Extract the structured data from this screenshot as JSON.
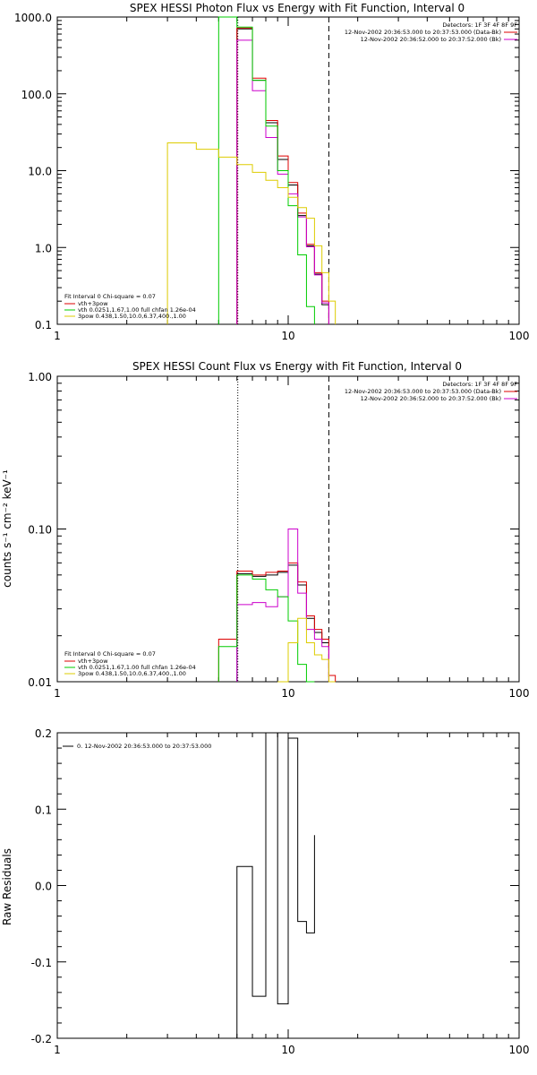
{
  "chart_data": [
    {
      "type": "line",
      "title": "SPEX HESSI Photon Flux vs Energy with Fit Function, Interval 0",
      "xlabel": "",
      "ylabel": "",
      "xscale": "log",
      "yscale": "log",
      "xlim": [
        1,
        100
      ],
      "ylim": [
        0.1,
        1000
      ],
      "x_ticks": [
        "1",
        "10",
        "100"
      ],
      "y_ticks": [
        "0.1",
        "1.0",
        "10.0",
        "100.0",
        "1000.0"
      ],
      "info_top_right": [
        "Detectors: 1F 3F 4F 8F 9F",
        "12-Nov-2002 20:36:53.000 to 20:37:53.000 (Data-Bk)",
        "12-Nov-2002 20:36:52.000 to 20:37:52.000 (Bk)"
      ],
      "legend_bottom_left": [
        "Fit Interval 0   Chi-square = 0.07",
        "vth+3pow",
        "vth 0.0251,1.67,1.00  full chfan 1.26e-04",
        "3pow 0.438,1.50,10.0,6.37,400.,1.00"
      ],
      "vlines": [
        {
          "x": 6.05,
          "style": "dotted"
        },
        {
          "x": 15.0,
          "style": "dashed"
        }
      ],
      "series": [
        {
          "color": "#000000",
          "edges": [
            6.0,
            7.0,
            8.0,
            9.0,
            10.0,
            11.0,
            12.0,
            13.0,
            14.0,
            15.0
          ],
          "values": [
            700,
            150,
            42,
            14,
            6.5,
            2.6,
            1.05,
            0.45,
            0.18
          ]
        },
        {
          "color": "#dd0000",
          "edges": [
            6.0,
            7.0,
            8.0,
            9.0,
            10.0,
            11.0,
            12.0,
            13.0,
            14.0,
            15.0
          ],
          "values": [
            720,
            160,
            45,
            15.5,
            7,
            2.8,
            1.1,
            0.47,
            0.2
          ]
        },
        {
          "color": "#cc00cc",
          "edges": [
            6.0,
            7.0,
            8.0,
            9.0,
            10.0,
            11.0,
            12.0,
            13.0,
            14.0,
            15.0
          ],
          "values": [
            500,
            110,
            27,
            9,
            5,
            2.5,
            1.02,
            0.44,
            0.19
          ]
        },
        {
          "color": "#00cc00",
          "edges": [
            5.0,
            6.0,
            7.0,
            8.0,
            9.0,
            10.0,
            11.0,
            12.0,
            13.0
          ],
          "values": [
            1000,
            740,
            150,
            38,
            10,
            3.5,
            0.8,
            0.17
          ]
        },
        {
          "color": "#ddcc00",
          "edges": [
            3.0,
            4.0,
            5.0,
            6.0,
            7.0,
            8.0,
            9.0,
            10.0,
            11.0,
            12.0,
            13.0,
            14.0,
            15.0,
            16.0
          ],
          "values": [
            23,
            19,
            15,
            12,
            9.5,
            7.5,
            6,
            4.5,
            3.3,
            2.4,
            1.05,
            0.47,
            0.2
          ]
        }
      ]
    },
    {
      "type": "line",
      "title": "SPEX HESSI Count Flux vs Energy with Fit Function, Interval 0",
      "xlabel": "",
      "ylabel": "counts s⁻¹ cm⁻² keV⁻¹",
      "xscale": "log",
      "yscale": "log",
      "xlim": [
        1,
        100
      ],
      "ylim": [
        0.01,
        1.0
      ],
      "x_ticks": [
        "1",
        "10",
        "100"
      ],
      "y_ticks": [
        "0.01",
        "0.10",
        "1.00"
      ],
      "info_top_right": [
        "Detectors: 1F 3F 4F 8F 9F",
        "12-Nov-2002 20:36:53.000 to 20:37:53.000 (Data-Bk)",
        "12-Nov-2002 20:36:52.000 to 20:37:52.000 (Bk)"
      ],
      "legend_bottom_left": [
        "Fit Interval 0   Chi-square = 0.07",
        "vth+3pow",
        "vth 0.0251,1.67,1.00  full chfan 1.26e-04",
        "3pow 0.438,1.50,10.0,6.37,400.,1.00"
      ],
      "vlines": [
        {
          "x": 6.05,
          "style": "dotted"
        },
        {
          "x": 15.0,
          "style": "dashed"
        }
      ],
      "series": [
        {
          "color": "#000000",
          "edges": [
            6.0,
            7.0,
            8.0,
            9.0,
            10.0,
            11.0,
            12.0,
            13.0,
            14.0,
            15.0
          ],
          "values": [
            0.051,
            0.049,
            0.05,
            0.052,
            0.058,
            0.043,
            0.026,
            0.021,
            0.018
          ]
        },
        {
          "color": "#dd0000",
          "edges": [
            5.0,
            6.0,
            7.0,
            8.0,
            9.0,
            10.0,
            11.0,
            12.0,
            13.0,
            14.0,
            15.0,
            16.0
          ],
          "values": [
            0.019,
            0.053,
            0.05,
            0.052,
            0.053,
            0.06,
            0.045,
            0.027,
            0.022,
            0.019,
            0.011
          ]
        },
        {
          "color": "#cc00cc",
          "edges": [
            6.0,
            7.0,
            8.0,
            9.0,
            10.0,
            11.0,
            12.0,
            13.0,
            14.0,
            15.0
          ],
          "values": [
            0.032,
            0.033,
            0.031,
            0.036,
            0.1,
            0.038,
            0.022,
            0.019,
            0.017
          ]
        },
        {
          "color": "#00cc00",
          "edges": [
            5.0,
            6.0,
            7.0,
            8.0,
            9.0,
            10.0,
            11.0,
            12.0,
            13.0
          ],
          "values": [
            0.017,
            0.05,
            0.047,
            0.04,
            0.036,
            0.025,
            0.013,
            0.01
          ]
        },
        {
          "color": "#ddcc00",
          "edges": [
            9.0,
            10.0,
            11.0,
            12.0,
            13.0,
            14.0,
            15.0,
            16.0
          ],
          "values": [
            0.01,
            0.018,
            0.026,
            0.018,
            0.015,
            0.014,
            0.01
          ]
        }
      ]
    },
    {
      "type": "line",
      "title": "",
      "xlabel": "",
      "ylabel": "Raw Residuals",
      "xscale": "log",
      "yscale": "linear",
      "xlim": [
        1,
        100
      ],
      "ylim": [
        -0.2,
        0.2
      ],
      "x_ticks": [
        "1",
        "10",
        "100"
      ],
      "y_ticks": [
        "-0.2",
        "-0.1",
        "0.0",
        "0.1",
        "0.2"
      ],
      "legend_top_left": [
        "0. 12-Nov-2002 20:36:53.000 to 20:37:53.000"
      ],
      "series": [
        {
          "color": "#000000",
          "edges": [
            6.0,
            7.0,
            8.0,
            9.0,
            10.0,
            11.0,
            12.0,
            13.0
          ],
          "values": [
            0.025,
            -0.145,
            0.202,
            -0.155,
            0.193,
            -0.047,
            -0.062,
            0.066
          ]
        }
      ]
    }
  ]
}
